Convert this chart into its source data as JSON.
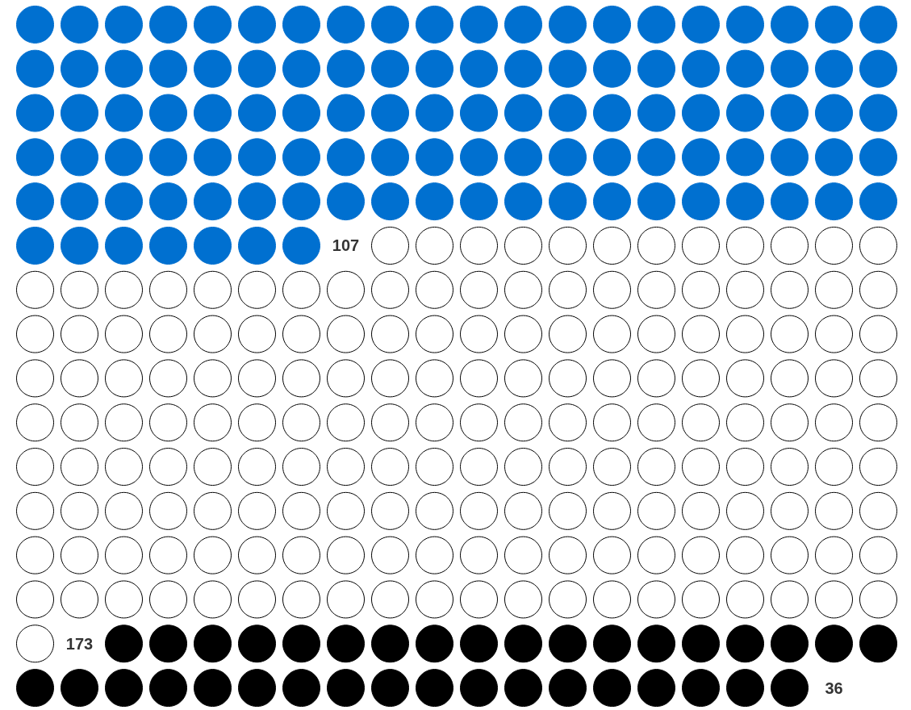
{
  "chart_data": {
    "type": "other",
    "categories": [
      null,
      null,
      null
    ],
    "values": [
      107,
      173,
      36
    ],
    "colors": [
      "#0070d0",
      "#ffffff",
      "#000000"
    ],
    "data_labels": true
  }
}
